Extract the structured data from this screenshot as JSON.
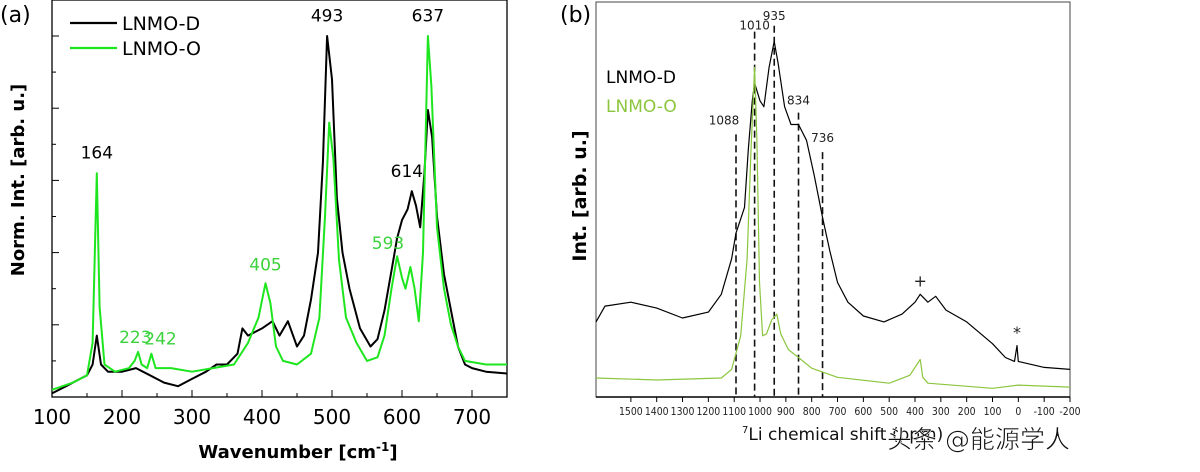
{
  "watermark": "头条 @能源学人",
  "chart_data": [
    {
      "panel_label": "(a)",
      "type": "line",
      "xlabel": "Wavenumber [cm-1]",
      "xlabel_main": "Wavenumber [cm",
      "xlabel_sup": "-1",
      "xlabel_end": "]",
      "ylabel": "Norm. Int. [arb. u.]",
      "xlim": [
        100,
        750
      ],
      "ylim": [
        0,
        1.0
      ],
      "xticks": [
        100,
        200,
        300,
        400,
        500,
        600,
        700
      ],
      "yticks_major": [
        0.2,
        0.4,
        0.6,
        0.8,
        1.0
      ],
      "yticks_minor": [
        0.1,
        0.3,
        0.5,
        0.7,
        0.9
      ],
      "y_tick_labels_shown": false,
      "grid": false,
      "legend_placement": "top-left",
      "series": [
        {
          "name": "LNMO-D",
          "color": "#000000",
          "x": [
            100,
            120,
            140,
            150,
            158,
            164,
            170,
            180,
            200,
            220,
            240,
            260,
            280,
            300,
            320,
            335,
            350,
            365,
            372,
            380,
            400,
            415,
            425,
            437,
            450,
            460,
            470,
            480,
            487,
            493,
            500,
            507,
            515,
            525,
            540,
            555,
            565,
            575,
            585,
            593,
            600,
            608,
            614,
            620,
            626,
            632,
            637,
            643,
            650,
            660,
            670,
            680,
            690,
            700,
            720,
            750
          ],
          "y": [
            0.01,
            0.03,
            0.05,
            0.06,
            0.09,
            0.17,
            0.09,
            0.07,
            0.07,
            0.08,
            0.06,
            0.04,
            0.03,
            0.05,
            0.07,
            0.09,
            0.09,
            0.12,
            0.19,
            0.17,
            0.19,
            0.21,
            0.17,
            0.21,
            0.14,
            0.17,
            0.27,
            0.4,
            0.65,
            1.0,
            0.88,
            0.55,
            0.4,
            0.3,
            0.19,
            0.14,
            0.16,
            0.24,
            0.35,
            0.44,
            0.49,
            0.52,
            0.57,
            0.53,
            0.47,
            0.62,
            0.795,
            0.72,
            0.5,
            0.34,
            0.24,
            0.14,
            0.09,
            0.08,
            0.07,
            0.065
          ]
        },
        {
          "name": "LNMO-O",
          "color": "#1ee61e",
          "x": [
            100,
            130,
            150,
            158,
            164,
            168,
            175,
            190,
            210,
            218,
            223,
            228,
            236,
            242,
            248,
            270,
            300,
            330,
            360,
            380,
            395,
            405,
            412,
            420,
            430,
            450,
            470,
            482,
            490,
            496,
            502,
            510,
            520,
            535,
            550,
            565,
            575,
            585,
            593,
            600,
            605,
            612,
            618,
            624,
            630,
            637,
            642,
            650,
            660,
            670,
            680,
            690,
            720,
            750
          ],
          "y": [
            0.02,
            0.04,
            0.06,
            0.15,
            0.62,
            0.25,
            0.09,
            0.07,
            0.08,
            0.1,
            0.125,
            0.09,
            0.08,
            0.12,
            0.08,
            0.08,
            0.07,
            0.08,
            0.09,
            0.15,
            0.22,
            0.315,
            0.26,
            0.14,
            0.1,
            0.09,
            0.12,
            0.22,
            0.5,
            0.76,
            0.66,
            0.38,
            0.22,
            0.15,
            0.1,
            0.11,
            0.17,
            0.3,
            0.39,
            0.33,
            0.3,
            0.36,
            0.3,
            0.21,
            0.4,
            1.0,
            0.86,
            0.47,
            0.3,
            0.2,
            0.14,
            0.1,
            0.09,
            0.09
          ]
        }
      ],
      "annotations": [
        {
          "text": "164",
          "x": 164,
          "y": 0.66,
          "color": "#000000"
        },
        {
          "text": "223",
          "x": 219,
          "y": 0.15,
          "color": "#3cd23c"
        },
        {
          "text": "242",
          "x": 255,
          "y": 0.145,
          "color": "#3cd23c"
        },
        {
          "text": "405",
          "x": 405,
          "y": 0.35,
          "color": "#3cd23c"
        },
        {
          "text": "493",
          "x": 493,
          "y": 1.04,
          "color": "#000000"
        },
        {
          "text": "593",
          "x": 580,
          "y": 0.41,
          "color": "#3cd23c"
        },
        {
          "text": "614",
          "x": 607,
          "y": 0.61,
          "color": "#000000"
        },
        {
          "text": "637",
          "x": 637,
          "y": 1.04,
          "color": "#000000"
        }
      ]
    },
    {
      "panel_label": "(b)",
      "type": "line",
      "xlabel": "7Li chemical shift (ppm)",
      "xlabel_sup": "7",
      "xlabel_main": "Li chemical shift (ppm)",
      "ylabel": "Int. [arb. u.]",
      "xlim": [
        1635,
        -200
      ],
      "ylim": [
        0,
        1.0
      ],
      "xticks": [
        1500,
        1400,
        1300,
        1200,
        1100,
        1000,
        900,
        800,
        700,
        600,
        500,
        400,
        300,
        200,
        100,
        0,
        -100,
        -200
      ],
      "x_reversed": true,
      "grid": false,
      "legend_placement": "top-left",
      "series": [
        {
          "name": "LNMO-D",
          "color": "#000000",
          "x": [
            1635,
            1600,
            1500,
            1400,
            1300,
            1200,
            1150,
            1110,
            1093,
            1060,
            1045,
            1030,
            1021,
            1000,
            985,
            965,
            945,
            930,
            905,
            880,
            851,
            820,
            790,
            758,
            730,
            700,
            660,
            600,
            520,
            450,
            400,
            380,
            350,
            320,
            280,
            200,
            100,
            50,
            15,
            5,
            0,
            -100,
            -200
          ],
          "y": [
            0.19,
            0.23,
            0.24,
            0.225,
            0.2,
            0.215,
            0.26,
            0.35,
            0.415,
            0.48,
            0.63,
            0.75,
            0.795,
            0.75,
            0.735,
            0.835,
            0.9,
            0.845,
            0.735,
            0.69,
            0.69,
            0.65,
            0.56,
            0.455,
            0.37,
            0.29,
            0.24,
            0.205,
            0.19,
            0.21,
            0.24,
            0.26,
            0.24,
            0.255,
            0.22,
            0.19,
            0.135,
            0.1,
            0.09,
            0.13,
            0.09,
            0.075,
            0.07
          ]
        },
        {
          "name": "LNMO-O",
          "color": "#8cc63f",
          "x": [
            1635,
            1400,
            1150,
            1110,
            1075,
            1050,
            1035,
            1021,
            1012,
            1002,
            990,
            975,
            955,
            935,
            920,
            890,
            851,
            800,
            700,
            500,
            420,
            380,
            370,
            350,
            100,
            0,
            -200
          ],
          "y": [
            0.048,
            0.043,
            0.048,
            0.07,
            0.155,
            0.35,
            0.625,
            0.835,
            0.65,
            0.29,
            0.155,
            0.16,
            0.195,
            0.21,
            0.16,
            0.12,
            0.1,
            0.073,
            0.05,
            0.035,
            0.055,
            0.095,
            0.05,
            0.035,
            0.022,
            0.03,
            0.025
          ]
        }
      ],
      "legend": [
        {
          "text": "LNMO-D",
          "color": "#000000"
        },
        {
          "text": "LNMO-O",
          "color": "#8cc63f"
        }
      ],
      "reference_lines": [
        {
          "label": "1088",
          "x": 1093,
          "top": 0.665,
          "label_y": 0.69
        },
        {
          "label": "1010",
          "x": 1021,
          "top": 0.925,
          "label_y": 0.93
        },
        {
          "label": "935",
          "x": 945,
          "top": 0.94,
          "label_y": 0.955
        },
        {
          "label": "834",
          "x": 851,
          "top": 0.72,
          "label_y": 0.74
        },
        {
          "label": "736",
          "x": 758,
          "top": 0.62,
          "label_y": 0.645
        }
      ],
      "markers": [
        {
          "text": "+",
          "x": 380,
          "y": 0.28
        },
        {
          "text": "*",
          "x": 5,
          "y": 0.15
        }
      ]
    }
  ]
}
